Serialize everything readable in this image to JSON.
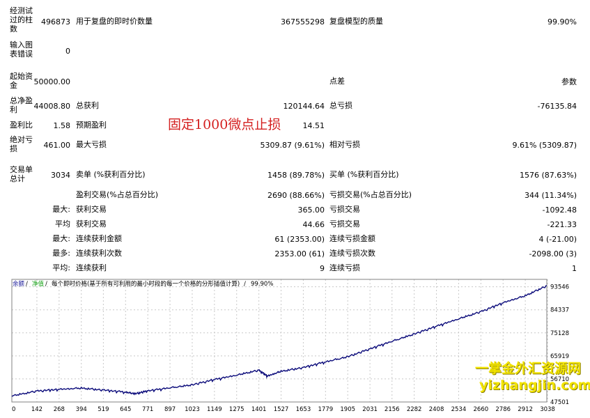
{
  "report": {
    "bars_label": "经测试过的柱数",
    "bars_value": "496873",
    "ticks_label": "用于复盘的即时价数量",
    "ticks_value": "367555298",
    "quality_label": "复盘模型的质量",
    "quality_value": "99.90%",
    "errors_label": "输入图表错误",
    "errors_value": "0",
    "deposit_label": "起始资金",
    "deposit_value": "50000.00",
    "spread_label": "点差",
    "spread_value": "参数",
    "net_profit_label": "总净盈利",
    "net_profit_value": "44008.80",
    "gross_profit_label": "总获利",
    "gross_profit_value": "120144.64",
    "gross_loss_label": "总亏损",
    "gross_loss_value": "-76135.84",
    "profit_factor_label": "盈利比",
    "profit_factor_value": "1.58",
    "expected_payoff_label": "预期盈利",
    "expected_payoff_value": "14.51",
    "abs_drawdown_label": "绝对亏损",
    "abs_drawdown_value": "461.00",
    "max_drawdown_label": "最大亏损",
    "max_drawdown_value": "5309.87 (9.61%)",
    "rel_drawdown_label": "相对亏损",
    "rel_drawdown_value": "9.61% (5309.87)",
    "total_trades_label": "交易单总计",
    "total_trades_value": "3034",
    "short_label": "卖单 (%获利百分比)",
    "short_value": "1458 (89.78%)",
    "long_label": "买单 (%获利百分比)",
    "long_value": "1576 (87.63%)",
    "profit_trades_label": "盈利交易(%占总百分比)",
    "profit_trades_value": "2690 (88.66%)",
    "loss_trades_label": "亏损交易(%占总百分比)",
    "loss_trades_value": "344 (11.34%)",
    "max_label": "最大:",
    "largest_profit_label": "获利交易",
    "largest_profit_value": "365.00",
    "largest_loss_label": "亏损交易",
    "largest_loss_value": "-1092.48",
    "avg_label": "平均",
    "avg_profit_label": "获利交易",
    "avg_profit_value": "44.66",
    "avg_loss_label": "亏损交易",
    "avg_loss_value": "-221.33",
    "max2_label": "最大:",
    "max_cons_wins_label": "连续获利金额",
    "max_cons_wins_value": "61 (2353.00)",
    "max_cons_losses_label": "连续亏损金额",
    "max_cons_losses_value": "4 (-21.00)",
    "most_label": "最多:",
    "max_cons_profit_label": "连续获利次数",
    "max_cons_profit_value": "2353.00 (61)",
    "max_cons_loss_label": "连续亏损次数",
    "max_cons_loss_value": "-2098.00 (3)",
    "avg2_label": "平均:",
    "avg_cons_wins_label": "连续获利",
    "avg_cons_wins_value": "9",
    "avg_cons_losses_label": "连续亏损",
    "avg_cons_losses_value": "1"
  },
  "annotation": "固定1000微点止损",
  "watermark": {
    "line1": "一掌金外汇资源网",
    "line2": "yizhangjin.com"
  },
  "chart_data": {
    "type": "line",
    "legend": {
      "balance": "余额",
      "sep1": " / ",
      "equity": "净值",
      "sep2": " / ",
      "model": "每个即时价格(基于所有可利用的最小时段的每一个价格的分形插值计算)",
      "sep3": " / ",
      "quality": "99.90%"
    },
    "x_ticks": [
      0,
      142,
      268,
      394,
      519,
      645,
      771,
      897,
      1023,
      1149,
      1275,
      1401,
      1527,
      1653,
      1779,
      1905,
      2031,
      2156,
      2282,
      2408,
      2534,
      2660,
      2786,
      2912,
      3038
    ],
    "y_ticks": [
      47501,
      56710,
      65919,
      75128,
      84337,
      93546
    ],
    "xlim": [
      0,
      3034
    ],
    "ylim": [
      47501,
      96500
    ],
    "grid": true,
    "series": [
      {
        "color": "#0a0a7a",
        "x": [
          0,
          142,
          268,
          394,
          519,
          645,
          700,
          771,
          897,
          1023,
          1149,
          1275,
          1401,
          1450,
          1527,
          1653,
          1779,
          1905,
          2031,
          2156,
          2282,
          2408,
          2534,
          2660,
          2786,
          2912,
          3034
        ],
        "values": [
          50000,
          51900,
          52600,
          53100,
          52300,
          51500,
          50800,
          52000,
          53200,
          54400,
          56500,
          58300,
          60200,
          57900,
          59800,
          61300,
          63600,
          65600,
          68800,
          71800,
          74700,
          77800,
          80800,
          83600,
          87200,
          90000,
          94009
        ]
      }
    ]
  }
}
